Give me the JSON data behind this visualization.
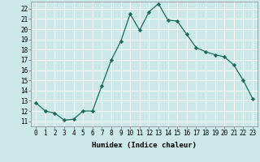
{
  "x": [
    0,
    1,
    2,
    3,
    4,
    5,
    6,
    7,
    8,
    9,
    10,
    11,
    12,
    13,
    14,
    15,
    16,
    17,
    18,
    19,
    20,
    21,
    22,
    23
  ],
  "y": [
    12.8,
    12.0,
    11.8,
    11.1,
    11.2,
    12.0,
    12.0,
    14.5,
    17.0,
    18.8,
    21.5,
    19.9,
    21.7,
    22.5,
    20.9,
    20.8,
    19.5,
    18.2,
    17.8,
    17.5,
    17.3,
    16.5,
    15.0,
    13.2
  ],
  "xlabel": "Humidex (Indice chaleur)",
  "xlim": [
    -0.5,
    23.5
  ],
  "ylim": [
    10.5,
    22.7
  ],
  "yticks": [
    11,
    12,
    13,
    14,
    15,
    16,
    17,
    18,
    19,
    20,
    21,
    22
  ],
  "xticks": [
    0,
    1,
    2,
    3,
    4,
    5,
    6,
    7,
    8,
    9,
    10,
    11,
    12,
    13,
    14,
    15,
    16,
    17,
    18,
    19,
    20,
    21,
    22,
    23
  ],
  "line_color": "#1a6b5a",
  "marker_color": "#1a6b5a",
  "bg_color": "#cce8e8",
  "grid_color": "#ffffff",
  "label_fontsize": 6.5,
  "tick_fontsize": 5.5
}
